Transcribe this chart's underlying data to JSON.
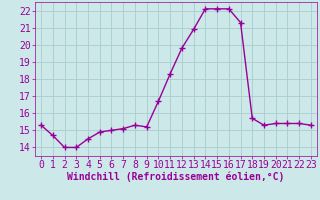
{
  "x": [
    0,
    1,
    2,
    3,
    4,
    5,
    6,
    7,
    8,
    9,
    10,
    11,
    12,
    13,
    14,
    15,
    16,
    17,
    18,
    19,
    20,
    21,
    22,
    23
  ],
  "y": [
    15.3,
    14.7,
    14.0,
    14.0,
    14.5,
    14.9,
    15.0,
    15.1,
    15.3,
    15.2,
    16.7,
    18.3,
    19.8,
    20.9,
    22.1,
    22.1,
    22.1,
    21.3,
    15.7,
    15.3,
    15.4,
    15.4,
    15.4,
    15.3
  ],
  "line_color": "#990099",
  "marker": "+",
  "bg_color": "#cce8e8",
  "grid_color": "#aacccc",
  "xlabel": "Windchill (Refroidissement éolien,°C)",
  "xlabel_color": "#990099",
  "tick_color": "#990099",
  "label_color": "#990099",
  "ylim": [
    13.5,
    22.5
  ],
  "xlim": [
    -0.5,
    23.5
  ],
  "yticks": [
    14,
    15,
    16,
    17,
    18,
    19,
    20,
    21,
    22
  ],
  "xticks": [
    0,
    1,
    2,
    3,
    4,
    5,
    6,
    7,
    8,
    9,
    10,
    11,
    12,
    13,
    14,
    15,
    16,
    17,
    18,
    19,
    20,
    21,
    22,
    23
  ],
  "linewidth": 1.0,
  "markersize": 4,
  "tick_fontsize": 7,
  "xlabel_fontsize": 7
}
